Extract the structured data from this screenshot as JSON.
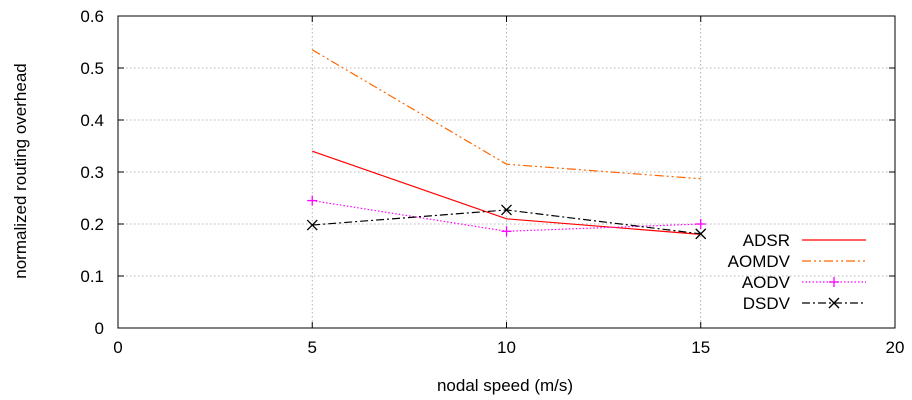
{
  "chart_data": {
    "type": "line",
    "title": "",
    "xlabel": "nodal speed (m/s)",
    "ylabel": "normalized routing overhead",
    "xlim": [
      0,
      20
    ],
    "ylim": [
      0,
      0.6
    ],
    "xticks": [
      "0",
      "5",
      "10",
      "15",
      "20"
    ],
    "yticks": [
      "0",
      "0.1",
      "0.2",
      "0.3",
      "0.4",
      "0.5",
      "0.6"
    ],
    "grid": true,
    "legend_position": "bottom-right",
    "series": [
      {
        "name": "ADSR",
        "x": [
          5,
          10,
          15
        ],
        "y": [
          0.34,
          0.21,
          0.18
        ],
        "color": "#ff0000",
        "style": "solid",
        "marker": "none"
      },
      {
        "name": "AOMDV",
        "x": [
          5,
          10,
          15
        ],
        "y": [
          0.535,
          0.315,
          0.287
        ],
        "color": "#ff6600",
        "style": "dash-dot-dot",
        "marker": "none"
      },
      {
        "name": "AODV",
        "x": [
          5,
          10,
          15
        ],
        "y": [
          0.245,
          0.186,
          0.2
        ],
        "color": "#ff00ff",
        "style": "dotted",
        "marker": "plus"
      },
      {
        "name": "DSDV",
        "x": [
          5,
          10,
          15
        ],
        "y": [
          0.198,
          0.227,
          0.181
        ],
        "color": "#000000",
        "style": "dash-dot",
        "marker": "cross"
      }
    ]
  }
}
